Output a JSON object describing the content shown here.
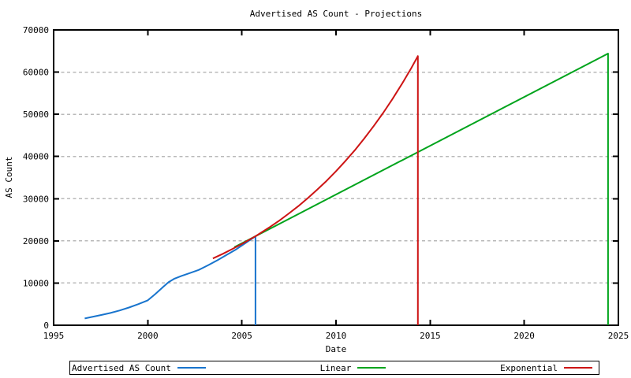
{
  "chart_data": {
    "type": "line",
    "title": "Advertised AS Count - Projections",
    "xlabel": "Date",
    "ylabel": "AS Count",
    "xlim": [
      1995,
      2025
    ],
    "ylim": [
      0,
      70000
    ],
    "xticks": [
      1995,
      2000,
      2005,
      2010,
      2015,
      2020,
      2025
    ],
    "yticks": [
      0,
      10000,
      20000,
      30000,
      40000,
      50000,
      60000,
      70000
    ],
    "grid": "horizontal-dashed",
    "grid_color": "#b9b9b9",
    "legend_position": "bottom",
    "series": [
      {
        "name": "Advertised AS Count",
        "color": "#1874cd",
        "points": [
          [
            1996.65,
            1600
          ],
          [
            1997.0,
            1950
          ],
          [
            1997.5,
            2400
          ],
          [
            1998.0,
            2900
          ],
          [
            1998.5,
            3500
          ],
          [
            1999.0,
            4200
          ],
          [
            1999.5,
            5000
          ],
          [
            2000.0,
            5900
          ],
          [
            2000.4,
            7400
          ],
          [
            2000.8,
            9000
          ],
          [
            2001.1,
            10200
          ],
          [
            2001.4,
            11000
          ],
          [
            2001.8,
            11700
          ],
          [
            2002.2,
            12300
          ],
          [
            2002.7,
            13100
          ],
          [
            2003.2,
            14200
          ],
          [
            2003.7,
            15400
          ],
          [
            2004.2,
            16700
          ],
          [
            2004.7,
            18000
          ],
          [
            2005.2,
            19500
          ],
          [
            2005.72,
            21100
          ],
          [
            2005.72,
            0
          ]
        ]
      },
      {
        "name": "Linear",
        "color": "#00a41c",
        "points": [
          [
            2004.6,
            18500
          ],
          [
            2024.45,
            64400
          ],
          [
            2024.45,
            0
          ]
        ]
      },
      {
        "name": "Exponential",
        "color": "#cd1414",
        "points": [
          [
            2003.46,
            15830
          ],
          [
            2004.0,
            16950
          ],
          [
            2004.5,
            18080
          ],
          [
            2005.0,
            19270
          ],
          [
            2005.72,
            21100
          ],
          [
            2006.5,
            23310
          ],
          [
            2007.0,
            24850
          ],
          [
            2007.5,
            26500
          ],
          [
            2008.0,
            28250
          ],
          [
            2008.5,
            30120
          ],
          [
            2009.0,
            32120
          ],
          [
            2009.5,
            34240
          ],
          [
            2010.0,
            36510
          ],
          [
            2010.5,
            38930
          ],
          [
            2011.0,
            41500
          ],
          [
            2011.5,
            44250
          ],
          [
            2012.0,
            47180
          ],
          [
            2012.5,
            50300
          ],
          [
            2013.0,
            53630
          ],
          [
            2013.5,
            57180
          ],
          [
            2014.0,
            60960
          ],
          [
            2014.35,
            63800
          ],
          [
            2014.35,
            0
          ]
        ]
      }
    ]
  }
}
